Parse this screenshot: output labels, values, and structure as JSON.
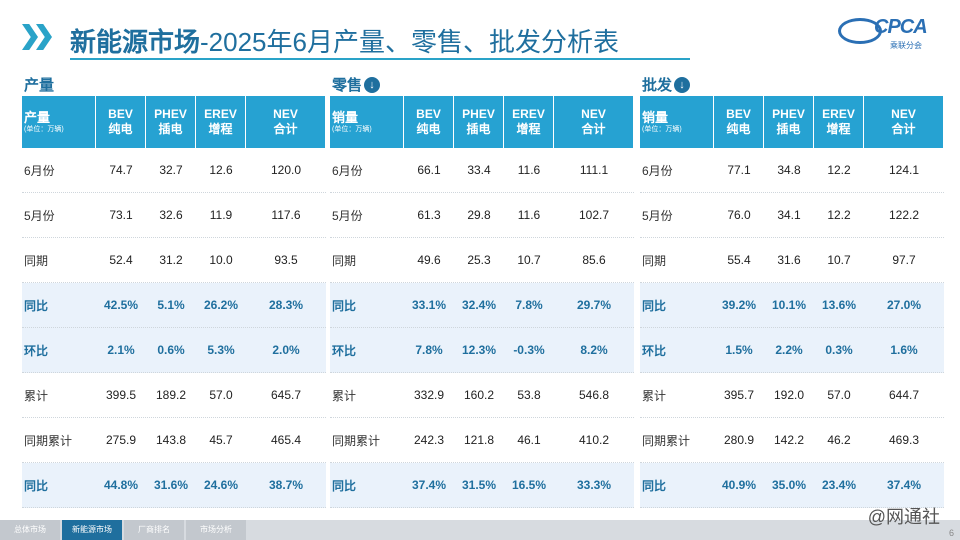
{
  "header": {
    "title_bold": "新能源市场",
    "title_rest": "-2025年6月产量、零售、批发分析表",
    "logo_text": "CPCA",
    "logo_sub": "乘联分会"
  },
  "sections": [
    {
      "title": "产量",
      "has_icon": false,
      "first_header": "产量",
      "unit": "(单位：万辆)",
      "columns": [
        {
          "top": "BEV",
          "bottom": "纯电"
        },
        {
          "top": "PHEV",
          "bottom": "插电"
        },
        {
          "top": "EREV",
          "bottom": "增程"
        },
        {
          "top": "NEV",
          "bottom": "合计"
        }
      ],
      "rows": [
        {
          "label": "6月份",
          "values": [
            "74.7",
            "32.7",
            "12.6",
            "120.0"
          ],
          "pct": false
        },
        {
          "label": "5月份",
          "values": [
            "73.1",
            "32.6",
            "11.9",
            "117.6"
          ],
          "pct": false
        },
        {
          "label": "同期",
          "values": [
            "52.4",
            "31.2",
            "10.0",
            "93.5"
          ],
          "pct": false
        },
        {
          "label": "同比",
          "values": [
            "42.5%",
            "5.1%",
            "26.2%",
            "28.3%"
          ],
          "pct": true
        },
        {
          "label": "环比",
          "values": [
            "2.1%",
            "0.6%",
            "5.3%",
            "2.0%"
          ],
          "pct": true
        },
        {
          "label": "累计",
          "values": [
            "399.5",
            "189.2",
            "57.0",
            "645.7"
          ],
          "pct": false
        },
        {
          "label": "同期累计",
          "values": [
            "275.9",
            "143.8",
            "45.7",
            "465.4"
          ],
          "pct": false
        },
        {
          "label": "同比",
          "values": [
            "44.8%",
            "31.6%",
            "24.6%",
            "38.7%"
          ],
          "pct": true
        }
      ]
    },
    {
      "title": "零售",
      "has_icon": true,
      "first_header": "销量",
      "unit": "(单位：万辆)",
      "columns": [
        {
          "top": "BEV",
          "bottom": "纯电"
        },
        {
          "top": "PHEV",
          "bottom": "插电"
        },
        {
          "top": "EREV",
          "bottom": "增程"
        },
        {
          "top": "NEV",
          "bottom": "合计"
        }
      ],
      "rows": [
        {
          "label": "6月份",
          "values": [
            "66.1",
            "33.4",
            "11.6",
            "111.1"
          ],
          "pct": false
        },
        {
          "label": "5月份",
          "values": [
            "61.3",
            "29.8",
            "11.6",
            "102.7"
          ],
          "pct": false
        },
        {
          "label": "同期",
          "values": [
            "49.6",
            "25.3",
            "10.7",
            "85.6"
          ],
          "pct": false
        },
        {
          "label": "同比",
          "values": [
            "33.1%",
            "32.4%",
            "7.8%",
            "29.7%"
          ],
          "pct": true
        },
        {
          "label": "环比",
          "values": [
            "7.8%",
            "12.3%",
            "-0.3%",
            "8.2%"
          ],
          "pct": true
        },
        {
          "label": "累计",
          "values": [
            "332.9",
            "160.2",
            "53.8",
            "546.8"
          ],
          "pct": false
        },
        {
          "label": "同期累计",
          "values": [
            "242.3",
            "121.8",
            "46.1",
            "410.2"
          ],
          "pct": false
        },
        {
          "label": "同比",
          "values": [
            "37.4%",
            "31.5%",
            "16.5%",
            "33.3%"
          ],
          "pct": true
        }
      ]
    },
    {
      "title": "批发",
      "has_icon": true,
      "first_header": "销量",
      "unit": "(单位：万辆)",
      "columns": [
        {
          "top": "BEV",
          "bottom": "纯电"
        },
        {
          "top": "PHEV",
          "bottom": "插电"
        },
        {
          "top": "EREV",
          "bottom": "增程"
        },
        {
          "top": "NEV",
          "bottom": "合计"
        }
      ],
      "rows": [
        {
          "label": "6月份",
          "values": [
            "77.1",
            "34.8",
            "12.2",
            "124.1"
          ],
          "pct": false
        },
        {
          "label": "5月份",
          "values": [
            "76.0",
            "34.1",
            "12.2",
            "122.2"
          ],
          "pct": false
        },
        {
          "label": "同期",
          "values": [
            "55.4",
            "31.6",
            "10.7",
            "97.7"
          ],
          "pct": false
        },
        {
          "label": "同比",
          "values": [
            "39.2%",
            "10.1%",
            "13.6%",
            "27.0%"
          ],
          "pct": true
        },
        {
          "label": "环比",
          "values": [
            "1.5%",
            "2.2%",
            "0.3%",
            "1.6%"
          ],
          "pct": true
        },
        {
          "label": "累计",
          "values": [
            "395.7",
            "192.0",
            "57.0",
            "644.7"
          ],
          "pct": false
        },
        {
          "label": "同期累计",
          "values": [
            "280.9",
            "142.2",
            "46.2",
            "469.3"
          ],
          "pct": false
        },
        {
          "label": "同比",
          "values": [
            "40.9%",
            "35.0%",
            "23.4%",
            "37.4%"
          ],
          "pct": true
        }
      ]
    }
  ],
  "footer": {
    "tabs": [
      {
        "label": "总体市场",
        "active": false
      },
      {
        "label": "新能源市场",
        "active": true
      },
      {
        "label": "厂商排名",
        "active": false
      },
      {
        "label": "市场分析",
        "active": false
      }
    ],
    "watermark": "@网通社",
    "page": "6"
  },
  "colors": {
    "accent": "#26a2d2",
    "title": "#1f6f9e",
    "pct_row_bg": "#eaf2fb"
  }
}
